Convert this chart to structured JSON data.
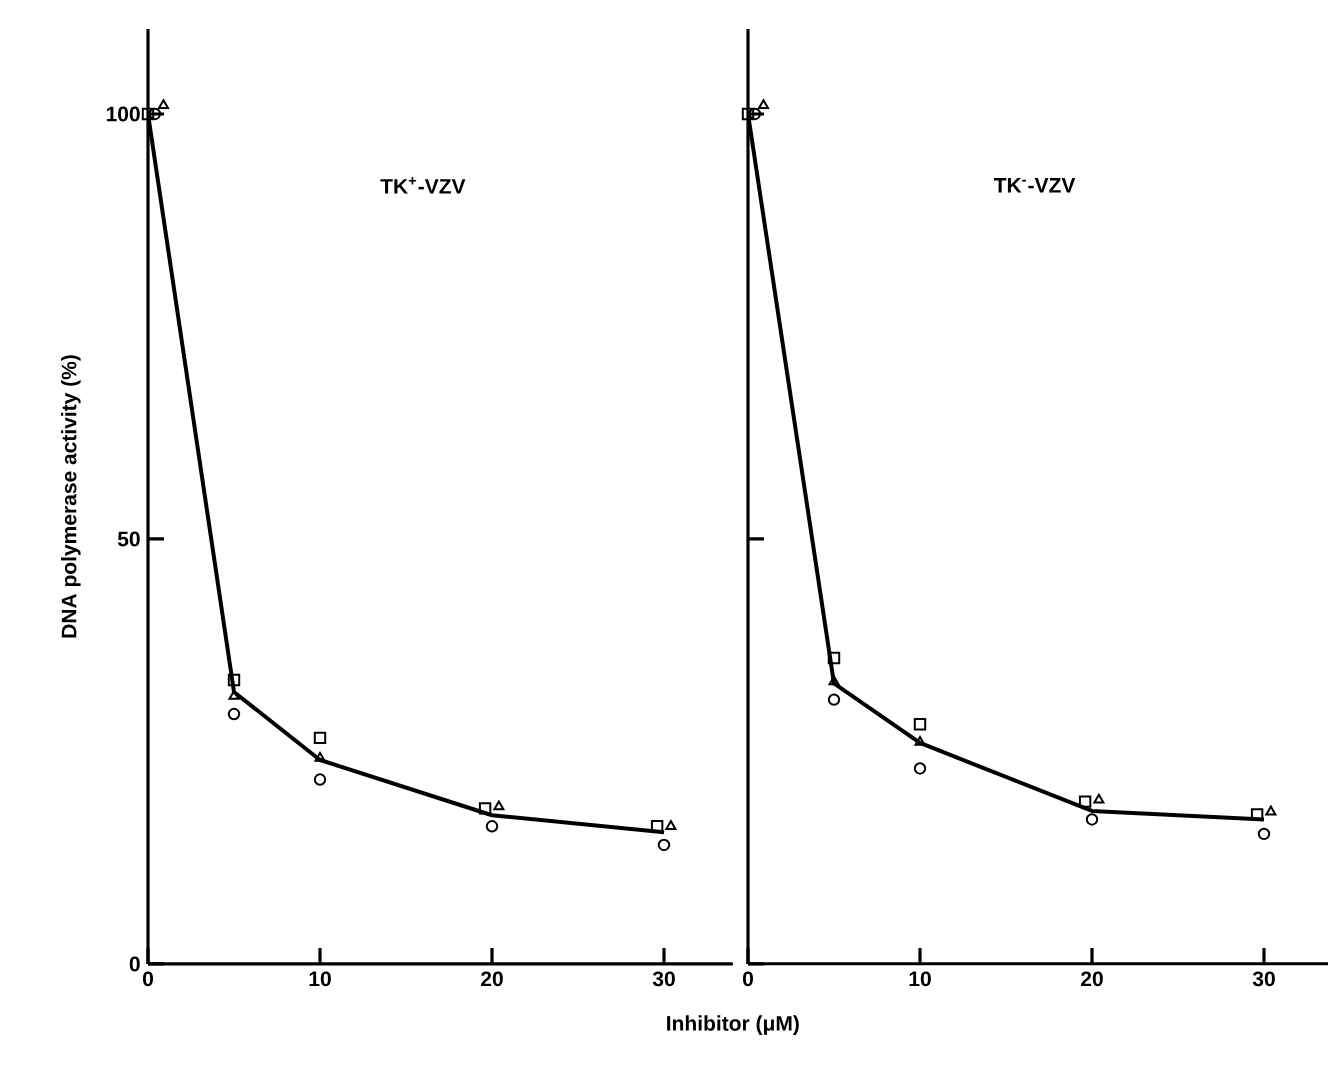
{
  "chart_data": [
    {
      "type": "scatter",
      "title": "TK$^{+}$-VZV",
      "xlabel": "Inhibitor (μM)",
      "ylabel": "DNA polymerase activity (%)",
      "x": [
        0,
        5,
        10,
        20,
        30
      ],
      "xlim": [
        0,
        34
      ],
      "xticks": [
        0,
        10,
        20,
        30
      ],
      "ylim": [
        0,
        110
      ],
      "yticks": [
        0,
        50,
        100
      ],
      "grid": false,
      "series": [
        {
          "type": "scatter",
          "marker": "square",
          "color": "#000000",
          "x": [
            0,
            5,
            10,
            19.6,
            29.6
          ],
          "values": [
            100,
            33.4,
            26.6,
            18.3,
            16.2
          ]
        },
        {
          "type": "scatter",
          "marker": "triangle",
          "color": "#000000",
          "x": [
            0.9,
            5,
            10,
            20.4,
            30.4
          ],
          "values": [
            101,
            31.5,
            24.2,
            18.5,
            16.2
          ]
        },
        {
          "type": "scatter",
          "marker": "circle",
          "color": "#000000",
          "x": [
            0.4,
            5,
            10,
            20,
            30
          ],
          "values": [
            100,
            29.4,
            21.7,
            16.2,
            14.0
          ]
        },
        {
          "type": "line",
          "marker": "none",
          "color": "#000000",
          "values": [
            100,
            32,
            24,
            17.5,
            15.5
          ]
        }
      ]
    },
    {
      "type": "scatter",
      "title": "TK$^{-}$-VZV",
      "x": [
        0,
        5,
        10,
        20,
        30
      ],
      "xlim": [
        0,
        34
      ],
      "xticks": [
        0,
        10,
        20,
        30
      ],
      "ylim": [
        0,
        110
      ],
      "yticks": [
        0,
        50,
        100
      ],
      "tick_labels": "x",
      "grid": false,
      "series": [
        {
          "type": "scatter",
          "marker": "square",
          "color": "#000000",
          "x": [
            0,
            5,
            10,
            19.6,
            29.6
          ],
          "values": [
            100,
            36.0,
            28.2,
            19.1,
            17.6
          ]
        },
        {
          "type": "scatter",
          "marker": "triangle",
          "color": "#000000",
          "x": [
            0.9,
            5,
            10,
            20.4,
            30.4
          ],
          "values": [
            101,
            33.2,
            26.1,
            19.3,
            17.9
          ]
        },
        {
          "type": "scatter",
          "marker": "circle",
          "color": "#000000",
          "x": [
            0.4,
            5,
            10,
            20,
            30
          ],
          "values": [
            100,
            31.1,
            23.0,
            17.0,
            15.3
          ]
        },
        {
          "type": "line",
          "marker": "none",
          "color": "#000000",
          "values": [
            100,
            33,
            26,
            18,
            17
          ]
        }
      ]
    }
  ]
}
